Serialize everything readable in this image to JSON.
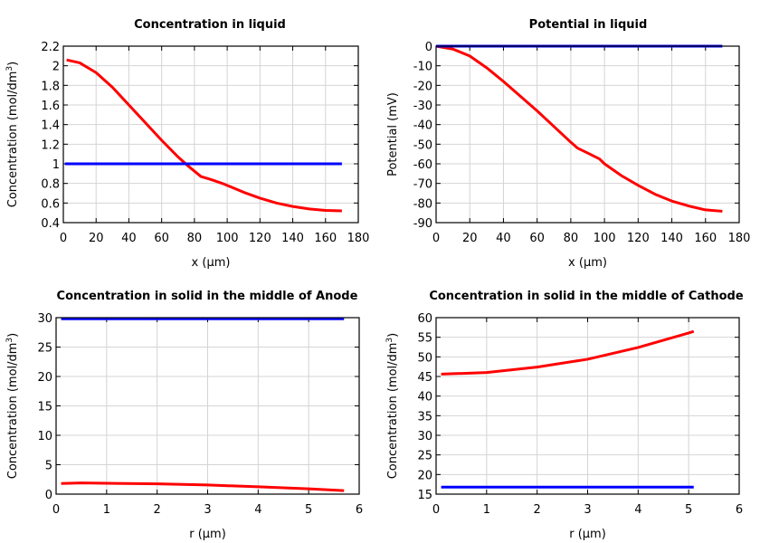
{
  "chart_data": [
    {
      "type": "line",
      "title": "Concentration in liquid",
      "xlabel": "x (µm)",
      "ylabel": "Concentration (mol/dm3)",
      "xlim": [
        0,
        180
      ],
      "ylim": [
        0.4,
        2.2
      ],
      "xticks": [
        0,
        20,
        40,
        60,
        80,
        100,
        120,
        140,
        160,
        180
      ],
      "yticks": [
        0.4,
        0.6,
        0.8,
        1,
        1.2,
        1.4,
        1.6,
        1.8,
        2,
        2.2
      ],
      "grid": true,
      "series": [
        {
          "color": "#ff0000",
          "x": [
            2,
            10,
            20,
            30,
            40,
            50,
            60,
            70,
            76,
            84,
            90,
            97,
            100,
            110,
            120,
            130,
            140,
            150,
            160,
            170
          ],
          "y": [
            2.06,
            2.03,
            1.93,
            1.78,
            1.6,
            1.42,
            1.24,
            1.07,
            0.98,
            0.87,
            0.84,
            0.8,
            0.78,
            0.71,
            0.65,
            0.6,
            0.565,
            0.54,
            0.525,
            0.52
          ]
        },
        {
          "color": "#0000ff",
          "x": [
            1,
            170
          ],
          "y": [
            1,
            1
          ]
        }
      ]
    },
    {
      "type": "line",
      "title": "Potential in liquid",
      "xlabel": "x (µm)",
      "ylabel": "Potential (mV)",
      "xlim": [
        0,
        180
      ],
      "ylim": [
        -90,
        0
      ],
      "xticks": [
        0,
        20,
        40,
        60,
        80,
        100,
        120,
        140,
        160,
        180
      ],
      "yticks": [
        -90,
        -80,
        -70,
        -60,
        -50,
        -40,
        -30,
        -20,
        -10,
        0
      ],
      "grid": true,
      "series": [
        {
          "color": "#ff0000",
          "x": [
            0,
            10,
            20,
            30,
            40,
            50,
            60,
            70,
            80,
            84,
            90,
            97,
            100,
            110,
            120,
            130,
            140,
            150,
            160,
            170
          ],
          "y": [
            0,
            -1.5,
            -5,
            -11,
            -18,
            -25.5,
            -33,
            -41,
            -49,
            -52,
            -54.5,
            -57.5,
            -60,
            -66,
            -71,
            -75.5,
            -79,
            -81.5,
            -83.5,
            -84.2
          ]
        },
        {
          "color": "#0000ff",
          "x": [
            0,
            170
          ],
          "y": [
            0,
            0
          ]
        }
      ]
    },
    {
      "type": "line",
      "title": "Concentration in solid in the middle of Anode",
      "xlabel": "r (µm)",
      "ylabel": "Concentration (mol/dm3)",
      "xlim": [
        0,
        6
      ],
      "ylim": [
        0,
        30
      ],
      "xticks": [
        0,
        1,
        2,
        3,
        4,
        5,
        6
      ],
      "yticks": [
        0,
        5,
        10,
        15,
        20,
        25,
        30
      ],
      "grid": true,
      "series": [
        {
          "color": "#ff0000",
          "x": [
            0.1,
            0.5,
            1,
            2,
            3,
            4,
            5,
            5.7
          ],
          "y": [
            1.8,
            1.9,
            1.85,
            1.75,
            1.55,
            1.25,
            0.9,
            0.6
          ]
        },
        {
          "color": "#0000ff",
          "x": [
            0.1,
            5.7
          ],
          "y": [
            29.8,
            29.8
          ]
        }
      ]
    },
    {
      "type": "line",
      "title": "Concentration in solid in the middle of Cathode",
      "xlabel": "r (µm)",
      "ylabel": "Concentration (mol/dm3)",
      "xlim": [
        0,
        6
      ],
      "ylim": [
        15,
        60
      ],
      "xticks": [
        0,
        1,
        2,
        3,
        4,
        5,
        6
      ],
      "yticks": [
        15,
        20,
        25,
        30,
        35,
        40,
        45,
        50,
        55,
        60
      ],
      "grid": true,
      "series": [
        {
          "color": "#ff0000",
          "x": [
            0.1,
            1,
            2,
            3,
            4,
            5,
            5.1
          ],
          "y": [
            45.6,
            46,
            47.4,
            49.4,
            52.4,
            56.1,
            56.5
          ]
        },
        {
          "color": "#0000ff",
          "x": [
            0.1,
            5.1
          ],
          "y": [
            16.8,
            16.8
          ]
        }
      ]
    }
  ]
}
